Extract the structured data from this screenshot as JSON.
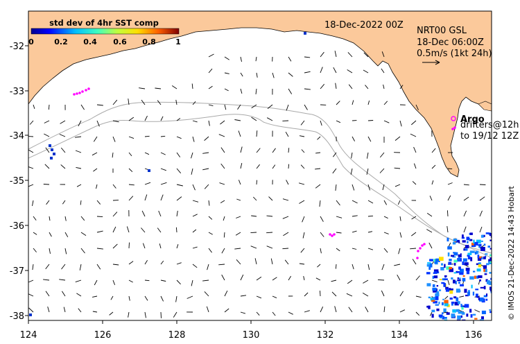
{
  "map": {
    "date_title": "18-Dec-2022 00Z",
    "product": "NRT00 GSL",
    "vector_time": "18-Dec 06:00Z",
    "scale_label": "0.5m/s (1kt 24h)",
    "argo_label": "Argo",
    "drifters_line1": "drifters@12h",
    "drifters_line2": "to 19/12 12Z",
    "credit": "© IMOS 21-Dec-2022 14:43 Hobart",
    "colorbar": {
      "title": "std dev of 4hr SST comp",
      "ticks": [
        "0",
        "0.2",
        "0.4",
        "0.6",
        "0.8",
        "1"
      ]
    },
    "x_axis": {
      "ticks": [
        "124",
        "126",
        "128",
        "130",
        "132",
        "134",
        "136"
      ],
      "range": [
        124,
        136.5
      ]
    },
    "y_axis": {
      "ticks": [
        "-32",
        "-33",
        "-34",
        "-35",
        "-36",
        "-37",
        "-38"
      ],
      "range": [
        -38.1,
        -31.3
      ]
    },
    "colors": {
      "land": "#fbc99b",
      "arrows": "#000000",
      "drifters": "#ff00ff",
      "bathymetry": "#a9a9a9"
    }
  }
}
